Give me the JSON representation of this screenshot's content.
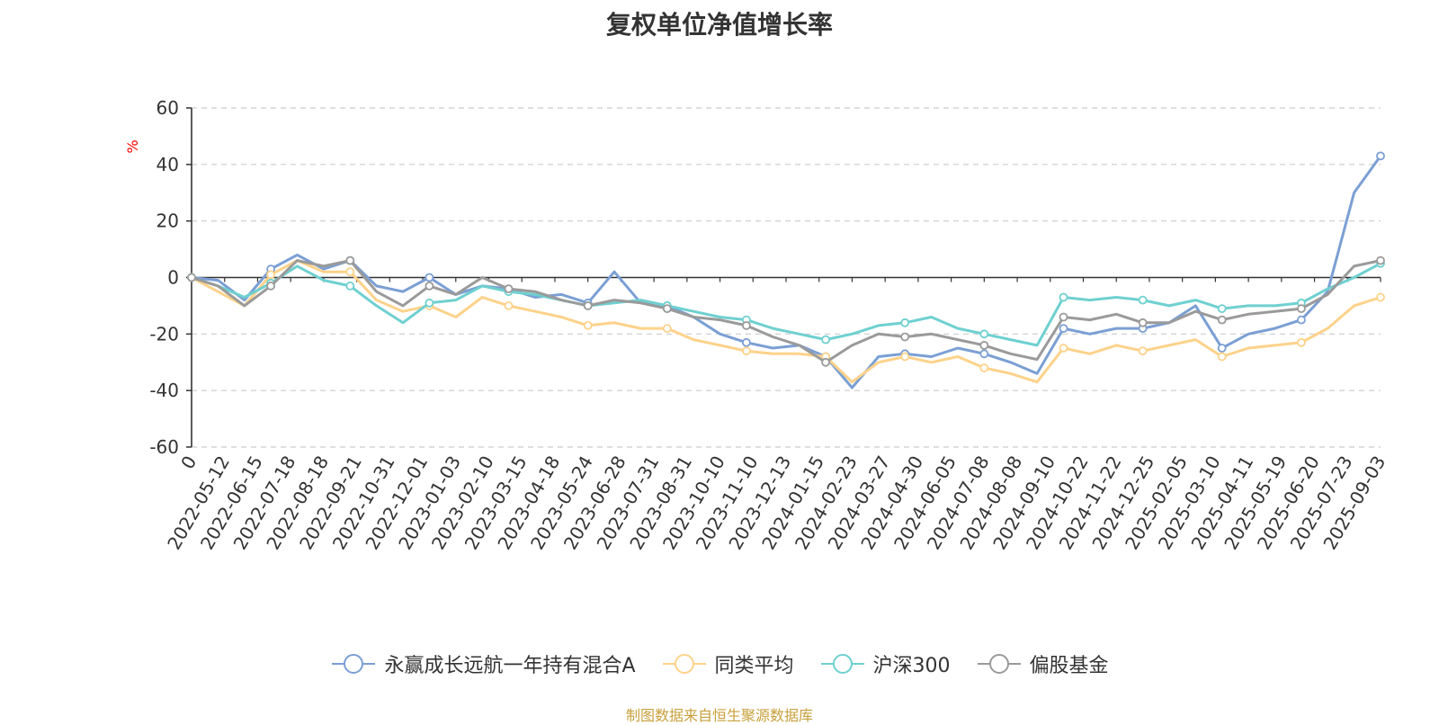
{
  "chart_data": {
    "type": "line",
    "title": "复权单位净值增长率",
    "ylabel": "%",
    "ylim": [
      -60,
      60
    ],
    "yticks": [
      60,
      40,
      20,
      0,
      -20,
      -40,
      -60
    ],
    "xtick_labels": [
      "0",
      "2022-05-12",
      "2022-06-15",
      "2022-07-18",
      "2022-08-18",
      "2022-09-21",
      "2022-10-31",
      "2022-12-01",
      "2023-01-03",
      "2023-02-10",
      "2023-03-15",
      "2023-04-18",
      "2023-05-24",
      "2023-06-28",
      "2023-07-31",
      "2023-08-31",
      "2023-10-10",
      "2023-11-10",
      "2023-12-13",
      "2024-01-15",
      "2024-02-23",
      "2024-03-27",
      "2024-04-30",
      "2024-06-05",
      "2024-07-08",
      "2024-08-08",
      "2024-09-10",
      "2024-10-22",
      "2024-11-22",
      "2024-12-25",
      "2025-02-05",
      "2025-03-10",
      "2025-04-11",
      "2025-05-19",
      "2025-06-20",
      "2025-07-23",
      "2025-09-03"
    ],
    "grid": true,
    "legend_position": "bottom",
    "series": [
      {
        "name": "永赢成长远航一年持有混合A",
        "color": "#7b9fd4",
        "values": [
          0,
          -1,
          -8,
          3,
          8,
          3,
          6,
          -3,
          -5,
          0,
          -6,
          -3,
          -4,
          -7,
          -6,
          -9,
          2,
          -9,
          -10,
          -14,
          -20,
          -23,
          -25,
          -24,
          -28,
          -39,
          -28,
          -27,
          -28,
          -25,
          -27,
          -30,
          -34,
          -18,
          -20,
          -18,
          -18,
          -16,
          -10,
          -25,
          -20,
          -18,
          -15,
          -5,
          30,
          43
        ]
      },
      {
        "name": "同类平均",
        "color": "#fdd28a",
        "values": [
          0,
          -5,
          -10,
          1,
          6,
          2,
          2,
          -8,
          -12,
          -10,
          -14,
          -7,
          -10,
          -12,
          -14,
          -17,
          -16,
          -18,
          -18,
          -22,
          -24,
          -26,
          -27,
          -27,
          -28,
          -37,
          -30,
          -28,
          -30,
          -28,
          -32,
          -34,
          -37,
          -25,
          -27,
          -24,
          -26,
          -24,
          -22,
          -28,
          -25,
          -24,
          -23,
          -18,
          -10,
          -7
        ]
      },
      {
        "name": "沪深300",
        "color": "#6fd0d0",
        "values": [
          0,
          -3,
          -7,
          -2,
          4,
          -1,
          -3,
          -10,
          -16,
          -9,
          -8,
          -3,
          -5,
          -6,
          -8,
          -10,
          -9,
          -8,
          -10,
          -12,
          -14,
          -15,
          -18,
          -20,
          -22,
          -20,
          -17,
          -16,
          -14,
          -18,
          -20,
          -22,
          -24,
          -7,
          -8,
          -7,
          -8,
          -10,
          -8,
          -11,
          -10,
          -10,
          -9,
          -4,
          0,
          5
        ]
      },
      {
        "name": "偏股基金",
        "color": "#9a9a9a",
        "values": [
          0,
          -3,
          -10,
          -3,
          6,
          4,
          6,
          -5,
          -10,
          -3,
          -6,
          0,
          -4,
          -5,
          -8,
          -10,
          -8,
          -9,
          -11,
          -14,
          -15,
          -17,
          -21,
          -24,
          -30,
          -24,
          -20,
          -21,
          -20,
          -22,
          -24,
          -27,
          -29,
          -14,
          -15,
          -13,
          -16,
          -16,
          -12,
          -15,
          -13,
          -12,
          -11,
          -6,
          4,
          6
        ]
      }
    ]
  },
  "source_note": "制图数据来自恒生聚源数据库"
}
